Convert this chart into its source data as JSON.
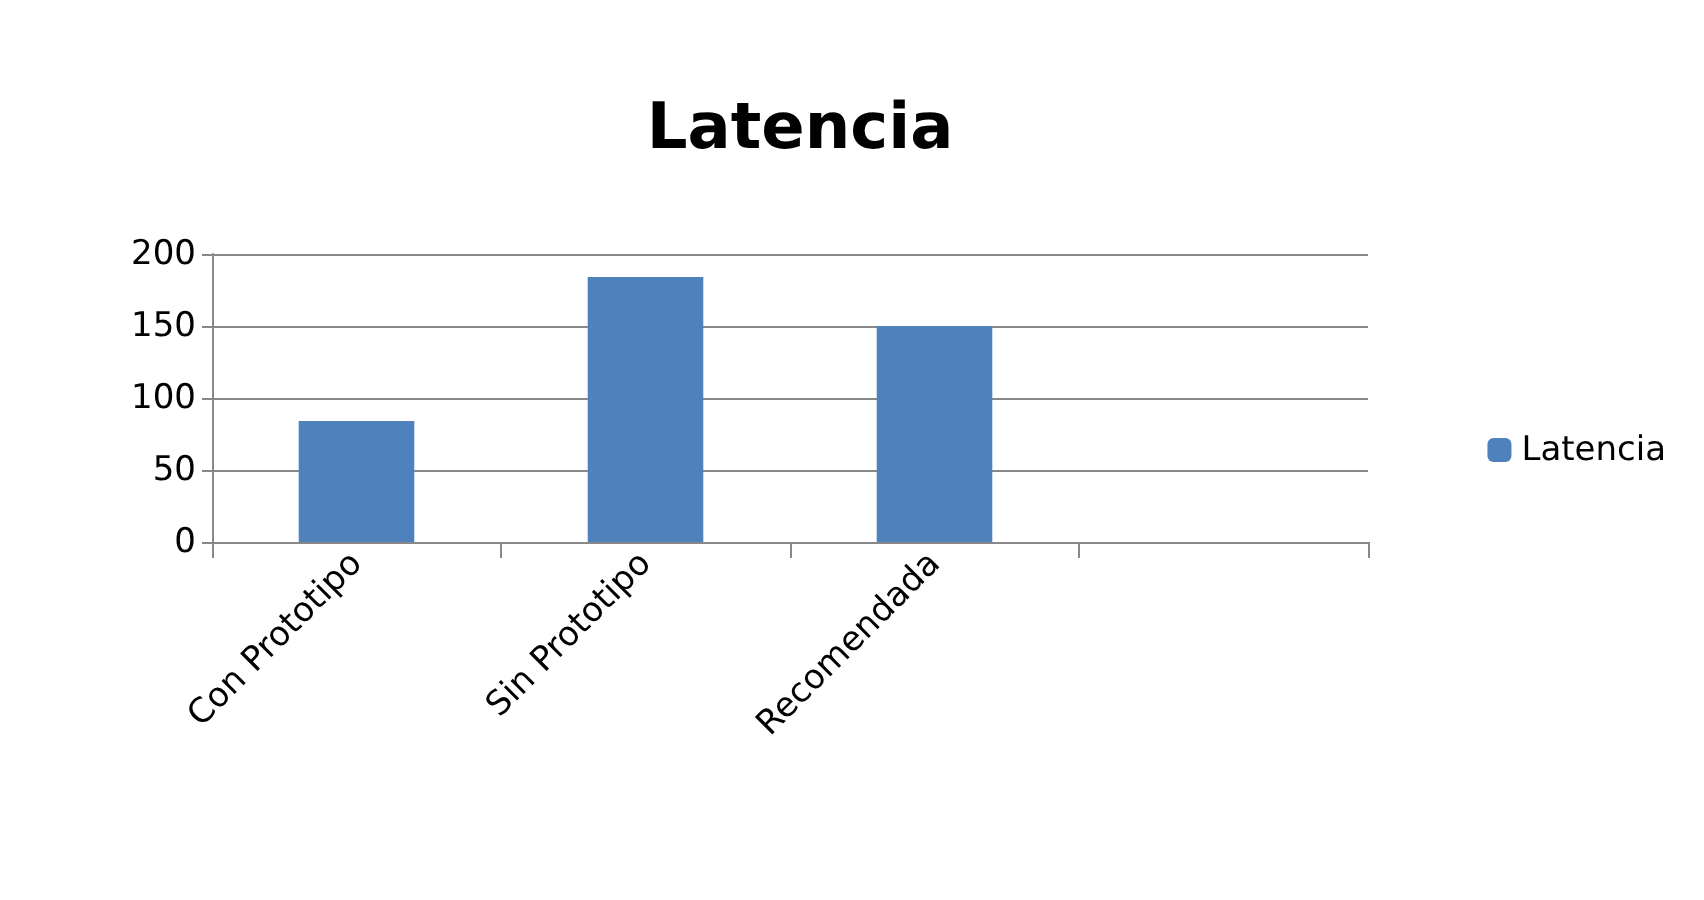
{
  "chart_data": {
    "type": "bar",
    "title": "Latencia",
    "categories": [
      "Con Prototipo",
      "Sin Prototipo",
      "Recomendada",
      null
    ],
    "series": [
      {
        "name": "Latencia",
        "color": "#4f81bd",
        "values": [
          84,
          184,
          150,
          null
        ]
      }
    ],
    "ylim": [
      0,
      200
    ],
    "yticks": [
      0,
      50,
      100,
      150,
      200
    ],
    "grid": "y",
    "legend": "right"
  }
}
